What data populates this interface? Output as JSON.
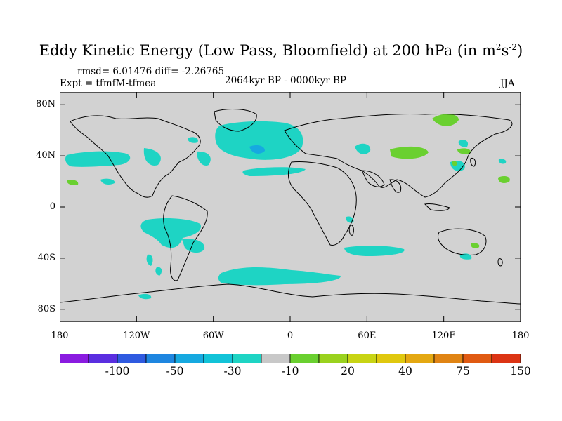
{
  "title": "Eddy Kinetic Energy (Low Pass, Bloomfield) at 200 hPa (in m",
  "title_unit_sup1": "2",
  "title_unit_mid": "s",
  "title_unit_sup2": "-2",
  "title_close": ")",
  "stats": "rmsd= 6.01476 diff= -2.26765",
  "experiment": "Expt = tfmfM-tfmea",
  "period": "2064kyr BP - 0000kyr BP",
  "season": "JJA",
  "y_ticks": [
    {
      "label": "80N",
      "lat": 80
    },
    {
      "label": "40N",
      "lat": 40
    },
    {
      "label": "0",
      "lat": 0
    },
    {
      "label": "40S",
      "lat": -40
    },
    {
      "label": "80S",
      "lat": -80
    }
  ],
  "x_ticks": [
    {
      "label": "180",
      "lon": -180
    },
    {
      "label": "120W",
      "lon": -120
    },
    {
      "label": "60W",
      "lon": -60
    },
    {
      "label": "0",
      "lon": 0
    },
    {
      "label": "60E",
      "lon": 60
    },
    {
      "label": "120E",
      "lon": 120
    },
    {
      "label": "180",
      "lon": 180
    }
  ],
  "colorbar": {
    "colors": [
      "#8a1be0",
      "#5a2ee0",
      "#2f5ae0",
      "#1e86e0",
      "#16a9e0",
      "#12c3d8",
      "#1ed4c4",
      "#c8c8c8",
      "#6ad030",
      "#9ad21e",
      "#c8d414",
      "#e0c80e",
      "#e4a812",
      "#e08414",
      "#e05a12",
      "#dc3414"
    ],
    "labels": [
      {
        "text": "-100",
        "index": 2
      },
      {
        "text": "-50",
        "index": 4
      },
      {
        "text": "-30",
        "index": 6
      },
      {
        "text": "-10",
        "index": 8
      },
      {
        "text": "20",
        "index": 10
      },
      {
        "text": "40",
        "index": 12
      },
      {
        "text": "75",
        "index": 14
      },
      {
        "text": "150",
        "index": 16
      }
    ]
  },
  "map_colors": {
    "background": "#d2d2d2",
    "neg_light": "#1ed4c4",
    "neg_mid": "#16a9e0",
    "pos_light": "#6ad030",
    "coast": "#000000"
  }
}
